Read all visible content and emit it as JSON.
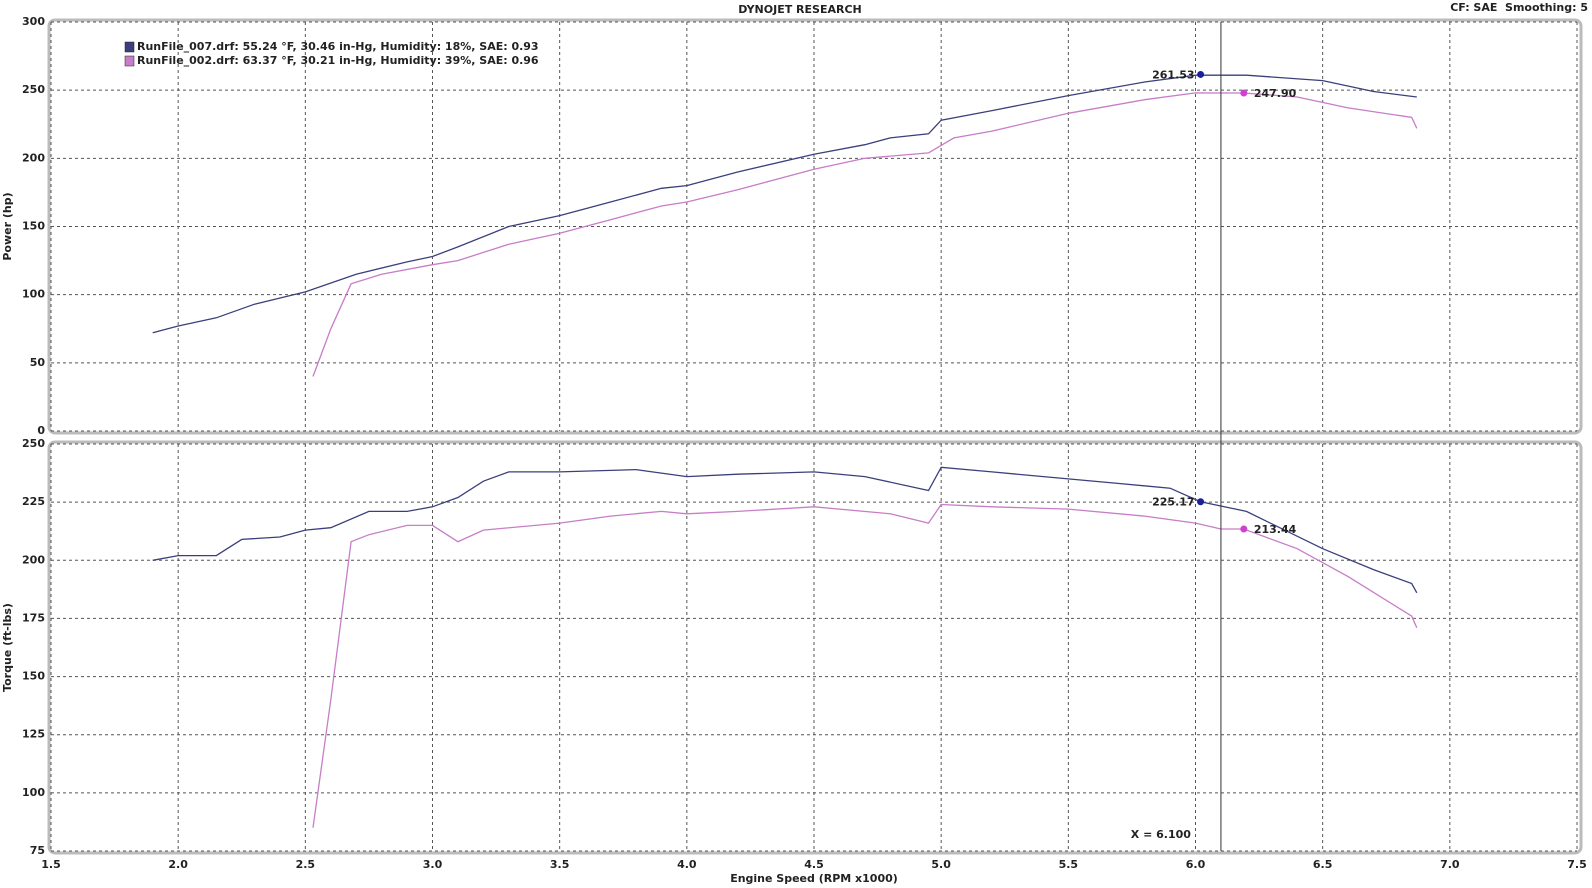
{
  "header": {
    "title": "DYNOJET RESEARCH",
    "settings": "CF: SAE  Smoothing: 5"
  },
  "chart_data": [
    {
      "type": "line",
      "ylabel": "Power (hp)",
      "xlim": [
        1.5,
        7.5
      ],
      "xticks": [
        1.5,
        {
          "value": 2,
          "label": "2.0"
        },
        2.5,
        {
          "value": 3,
          "label": "3.0"
        },
        3.5,
        {
          "value": 4,
          "label": "4.0"
        },
        4.5,
        {
          "value": 5,
          "label": "5.0"
        },
        5.5,
        {
          "value": 6,
          "label": "6.0"
        },
        6.5,
        {
          "value": 7,
          "label": "7.0"
        },
        7.5
      ],
      "ylim": [
        0,
        300
      ],
      "yticks": [
        0,
        50,
        100,
        150,
        200,
        250,
        300
      ],
      "grid": true,
      "legend": "top-left",
      "series": [
        {
          "name": "RunFile_007.drf: 55.24 °F, 30.46 in-Hg, Humidity: 18%, SAE: 0.93",
          "color": "#3b3f7c",
          "x": [
            1.9,
            2.0,
            2.15,
            2.3,
            2.5,
            2.7,
            2.9,
            3.0,
            3.1,
            3.3,
            3.5,
            3.7,
            3.9,
            4.0,
            4.2,
            4.5,
            4.7,
            4.8,
            4.95,
            5.0,
            5.2,
            5.5,
            5.8,
            6.0,
            6.2,
            6.5,
            6.7,
            6.87
          ],
          "values": [
            72,
            77,
            83,
            93,
            102,
            115,
            124,
            128,
            135,
            150,
            158,
            168,
            178,
            180,
            190,
            203,
            210,
            215,
            218,
            228,
            235,
            246,
            256,
            261,
            261,
            257,
            249,
            245
          ]
        },
        {
          "name": "RunFile_002.drf: 63.37 °F, 30.21 in-Hg, Humidity: 39%, SAE: 0.96",
          "color": "#c77dc7",
          "x": [
            2.53,
            2.6,
            2.68,
            2.8,
            3.0,
            3.1,
            3.3,
            3.5,
            3.7,
            3.9,
            4.0,
            4.2,
            4.5,
            4.7,
            4.95,
            5.05,
            5.2,
            5.5,
            5.8,
            6.0,
            6.19,
            6.4,
            6.6,
            6.85,
            6.87
          ],
          "values": [
            40,
            75,
            108,
            115,
            122,
            125,
            137,
            145,
            155,
            165,
            168,
            177,
            192,
            200,
            204,
            215,
            220,
            233,
            243,
            248,
            247.9,
            245,
            237,
            230,
            222
          ]
        }
      ],
      "markers": [
        {
          "x": 6.02,
          "value": 261.53,
          "color": "#1a1f9a"
        },
        {
          "x": 6.19,
          "value": 247.9,
          "label": "247.90",
          "color": "#d040d0"
        }
      ]
    },
    {
      "type": "line",
      "ylabel": "Torque (ft-lbs)",
      "xlabel": "Engine Speed (RPM x1000)",
      "xlim": [
        1.5,
        7.5
      ],
      "xticks": [
        1.5,
        {
          "value": 2,
          "label": "2.0"
        },
        2.5,
        {
          "value": 3,
          "label": "3.0"
        },
        3.5,
        {
          "value": 4,
          "label": "4.0"
        },
        4.5,
        {
          "value": 5,
          "label": "5.0"
        },
        5.5,
        {
          "value": 6,
          "label": "6.0"
        },
        6.5,
        {
          "value": 7,
          "label": "7.0"
        },
        7.5
      ],
      "ylim": [
        75,
        250
      ],
      "yticks": [
        75,
        100,
        125,
        150,
        175,
        200,
        225,
        250
      ],
      "grid": true,
      "series": [
        {
          "color": "#3b3f7c",
          "x": [
            1.9,
            2.0,
            2.15,
            2.25,
            2.4,
            2.5,
            2.6,
            2.75,
            2.9,
            3.0,
            3.1,
            3.2,
            3.3,
            3.5,
            3.8,
            4.0,
            4.2,
            4.5,
            4.7,
            4.95,
            5.0,
            5.2,
            5.5,
            5.7,
            5.9,
            6.02,
            6.2,
            6.5,
            6.7,
            6.85,
            6.87
          ],
          "values": [
            200,
            202,
            202,
            209,
            210,
            213,
            214,
            221,
            221,
            223,
            227,
            234,
            238,
            238,
            239,
            236,
            237,
            238,
            236,
            230,
            240,
            238,
            235,
            233,
            231,
            225.17,
            221,
            205,
            196,
            190,
            186
          ]
        },
        {
          "color": "#c77dc7",
          "x": [
            2.53,
            2.6,
            2.68,
            2.75,
            2.9,
            3.0,
            3.1,
            3.2,
            3.5,
            3.7,
            3.9,
            4.0,
            4.2,
            4.5,
            4.8,
            4.95,
            5.0,
            5.2,
            5.5,
            5.8,
            6.0,
            6.1,
            6.19,
            6.4,
            6.6,
            6.85,
            6.87
          ],
          "values": [
            85,
            140,
            208,
            211,
            215,
            215,
            208,
            213,
            216,
            219,
            221,
            220,
            221,
            223,
            220,
            216,
            224,
            223,
            222,
            219,
            216,
            213.44,
            213.44,
            205,
            193,
            176,
            171
          ]
        }
      ],
      "markers": [
        {
          "x": 6.02,
          "value": 225.17,
          "color": "#1a1f9a"
        },
        {
          "x": 6.19,
          "value": 213.44,
          "color": "#d040d0"
        }
      ],
      "cursor": {
        "value": 6.1,
        "label": "X = 6.100"
      }
    }
  ]
}
